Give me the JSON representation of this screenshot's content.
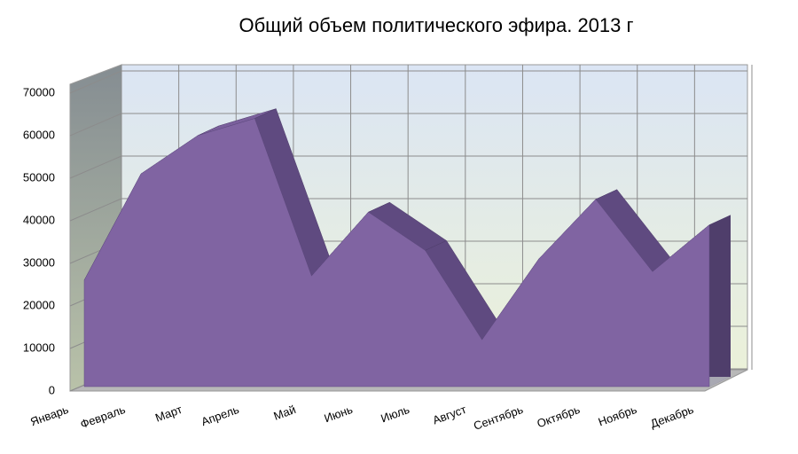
{
  "chart_data": {
    "type": "area",
    "title": "Общий объем политического эфира. 2013 г",
    "categories": [
      "Январь",
      "Февраль",
      "Март",
      "Апрель",
      "Май",
      "Июнь",
      "Июль",
      "Август",
      "Сентябрь",
      "Октябрь",
      "Ноябрь",
      "Декабрь"
    ],
    "values": [
      25000,
      50000,
      59000,
      63000,
      26000,
      41000,
      32000,
      11000,
      30000,
      44000,
      27000,
      38000
    ],
    "color": "#8064a2",
    "ylim": [
      0,
      70000
    ],
    "yticks": [
      0,
      10000,
      20000,
      30000,
      40000,
      50000,
      60000,
      70000
    ],
    "grid": true
  }
}
